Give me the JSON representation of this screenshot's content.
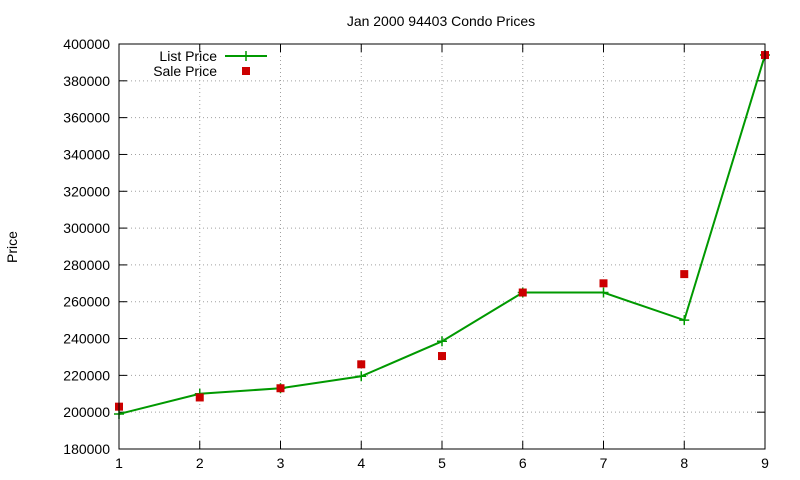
{
  "chart_data": {
    "type": "line",
    "title": "Jan 2000 94403 Condo Prices",
    "xlabel": "",
    "ylabel": "Price",
    "xlim": [
      1,
      9
    ],
    "ylim": [
      180000,
      400000
    ],
    "x_ticks": [
      1,
      2,
      3,
      4,
      5,
      6,
      7,
      8,
      9
    ],
    "y_ticks": [
      180000,
      200000,
      220000,
      240000,
      260000,
      280000,
      300000,
      320000,
      340000,
      360000,
      380000,
      400000
    ],
    "grid": true,
    "legend_position": "top-left",
    "series": [
      {
        "name": "List Price",
        "style": "line-with-plus-markers",
        "color": "#009900",
        "x": [
          1,
          2,
          3,
          4,
          5,
          6,
          7,
          8,
          9
        ],
        "values": [
          199000,
          210000,
          213000,
          219500,
          238500,
          265000,
          265000,
          250000,
          394000
        ]
      },
      {
        "name": "Sale Price",
        "style": "square-markers",
        "color": "#cc0000",
        "x": [
          1,
          2,
          3,
          4,
          5,
          6,
          7,
          8,
          9
        ],
        "values": [
          203000,
          208000,
          213000,
          226000,
          230500,
          265000,
          270000,
          275000,
          394000
        ]
      }
    ]
  }
}
